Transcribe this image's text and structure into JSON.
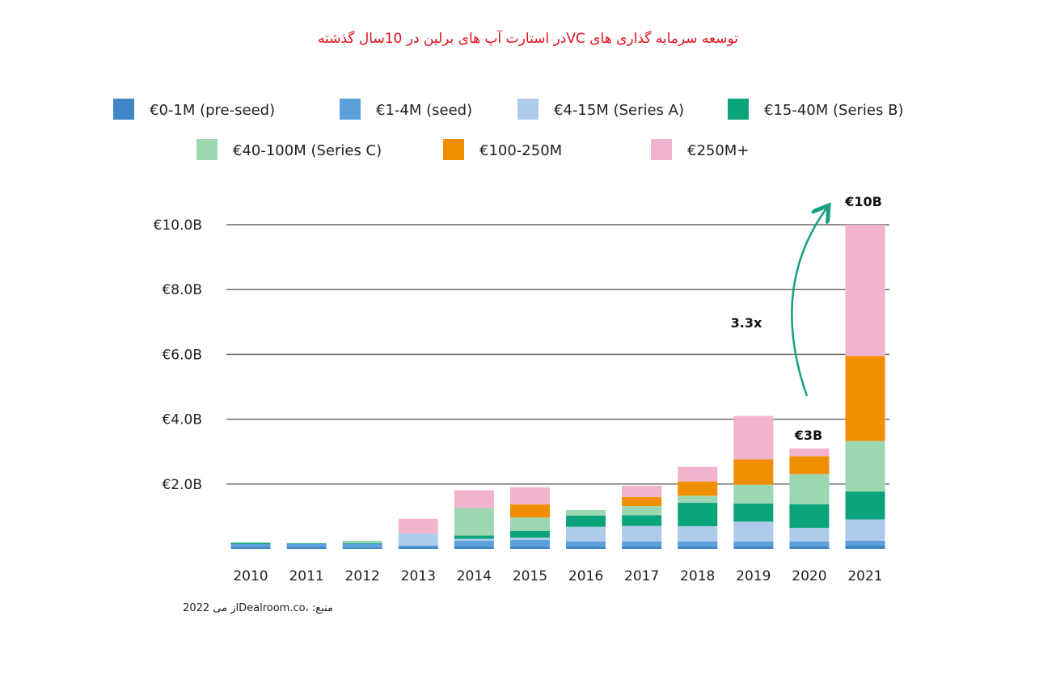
{
  "title": "توسعه سرمایه گذاری های  VCدر استارت آپ های برلین در  10سال گذشته",
  "source_note": "منبع:  ،Dealroom.coاز می 2022",
  "chart_data": {
    "type": "bar",
    "stacked": true,
    "categories": [
      "2010",
      "2011",
      "2012",
      "2013",
      "2014",
      "2015",
      "2016",
      "2017",
      "2018",
      "2019",
      "2020",
      "2021"
    ],
    "y_ticks": [
      {
        "value": 2,
        "label": "€2.0B"
      },
      {
        "value": 4,
        "label": "€4.0B"
      },
      {
        "value": 6,
        "label": "€6.0B"
      },
      {
        "value": 8,
        "label": "€8.0B"
      },
      {
        "value": 10,
        "label": "€10.0B"
      }
    ],
    "ylim": [
      0,
      10
    ],
    "grid": true,
    "legend_position": "top",
    "series": [
      {
        "name": "€0-1M (pre-seed)",
        "color": "#3f86c6",
        "values": [
          0.05,
          0.05,
          0.04,
          0.05,
          0.08,
          0.08,
          0.08,
          0.08,
          0.08,
          0.08,
          0.08,
          0.1
        ]
      },
      {
        "name": "€1-4M (seed)",
        "color": "#5b9fdb",
        "values": [
          0.1,
          0.1,
          0.12,
          0.05,
          0.17,
          0.2,
          0.15,
          0.15,
          0.15,
          0.15,
          0.15,
          0.15
        ]
      },
      {
        "name": "€4-15M (Series A)",
        "color": "#aecbea",
        "values": [
          0,
          0,
          0,
          0.38,
          0.06,
          0.07,
          0.45,
          0.48,
          0.47,
          0.61,
          0.42,
          0.66
        ]
      },
      {
        "name": "€15-40M (Series B)",
        "color": "#0ba37a",
        "values": [
          0.04,
          0.02,
          0.02,
          0,
          0.1,
          0.2,
          0.35,
          0.33,
          0.72,
          0.56,
          0.73,
          0.86
        ]
      },
      {
        "name": "€40-100M (Series C)",
        "color": "#9dd7b2",
        "values": [
          0,
          0,
          0.07,
          0,
          0.85,
          0.42,
          0.17,
          0.28,
          0.22,
          0.58,
          0.93,
          1.56
        ]
      },
      {
        "name": "€100-250M",
        "color": "#f08e00",
        "values": [
          0,
          0,
          0,
          0,
          0,
          0.4,
          0,
          0.28,
          0.44,
          0.78,
          0.55,
          2.62
        ]
      },
      {
        "name": "€250M+",
        "color": "#f2b3ce",
        "values": [
          0,
          0,
          0,
          0.45,
          0.55,
          0.53,
          0,
          0.35,
          0.45,
          1.34,
          0.24,
          4.05
        ]
      }
    ],
    "annotations": [
      {
        "label": "€10B"
      },
      {
        "label": "€3B"
      },
      {
        "label": "3.3x"
      }
    ]
  }
}
